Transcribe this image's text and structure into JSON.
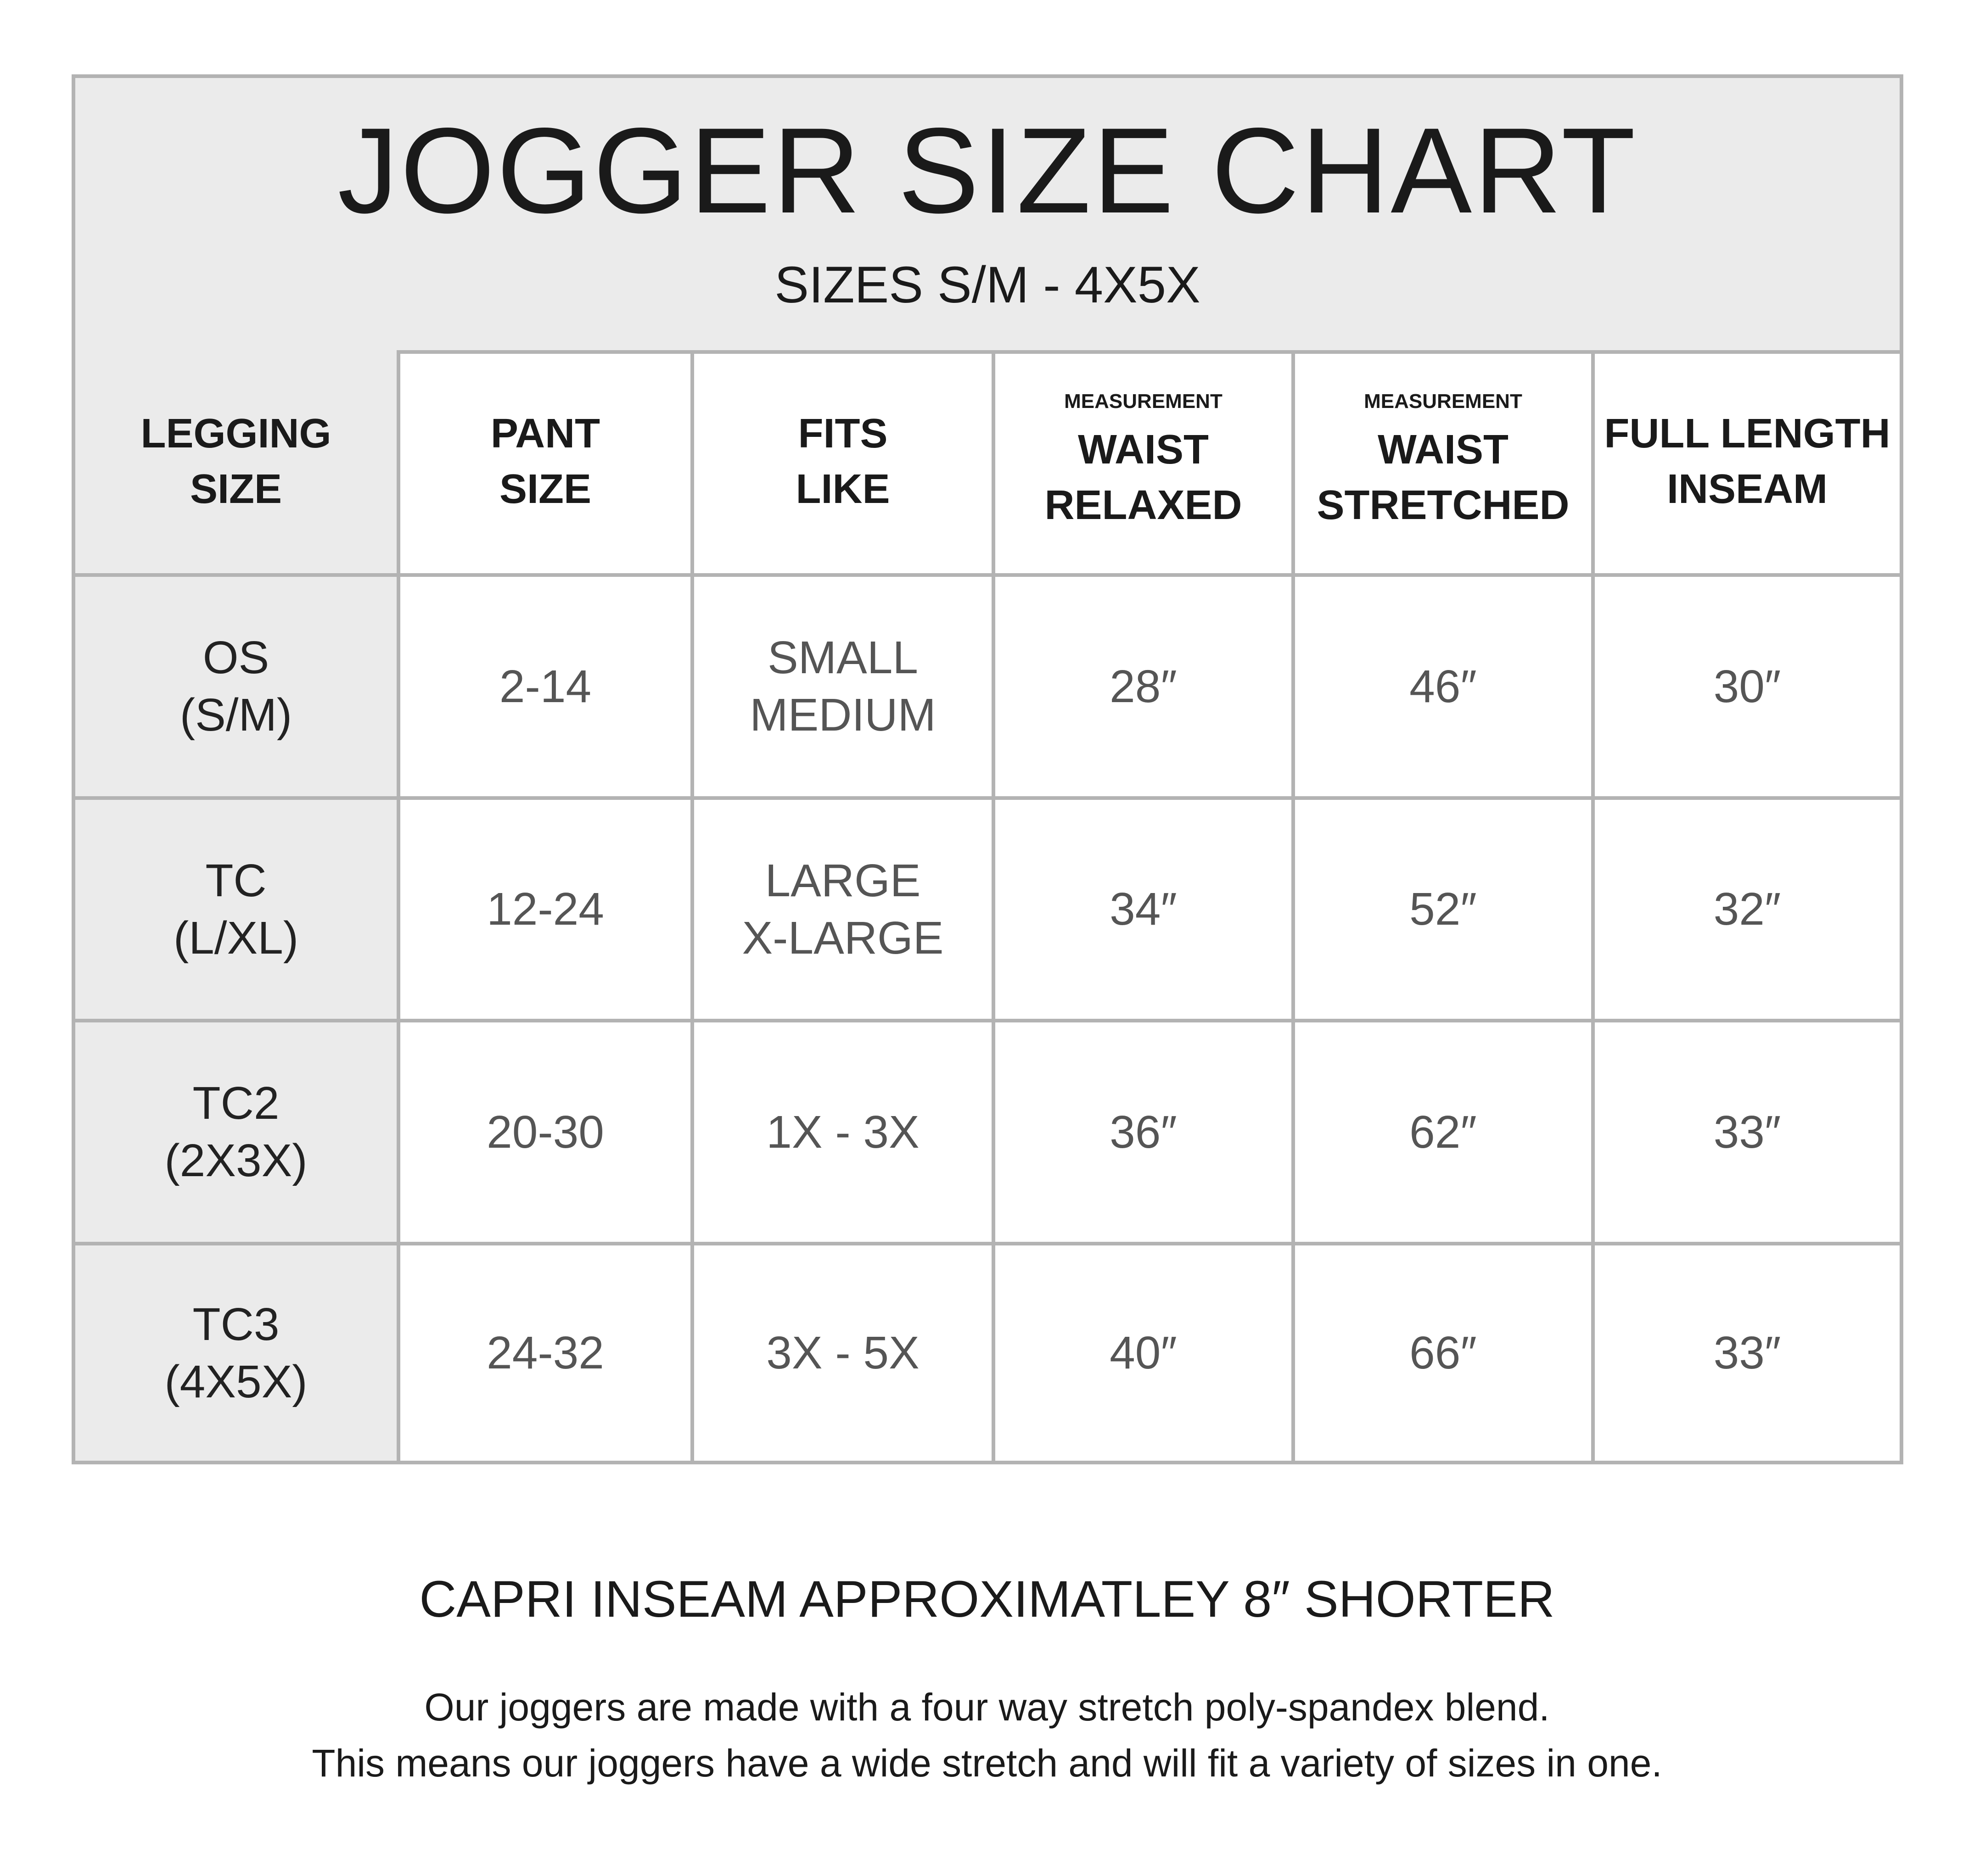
{
  "title": "JOGGER SIZE CHART",
  "subtitle": "SIZES S/M - 4X5X",
  "table": {
    "headers": [
      {
        "small": "",
        "lines": [
          "LEGGING",
          "SIZE"
        ]
      },
      {
        "small": "",
        "lines": [
          "PANT",
          "SIZE"
        ]
      },
      {
        "small": "",
        "lines": [
          "FITS",
          "LIKE"
        ]
      },
      {
        "small": "MEASUREMENT",
        "lines": [
          "WAIST",
          "RELAXED"
        ]
      },
      {
        "small": "MEASUREMENT",
        "lines": [
          "WAIST",
          "STRETCHED"
        ]
      },
      {
        "small": "",
        "lines": [
          "FULL LENGTH",
          "INSEAM"
        ]
      }
    ],
    "rows": [
      [
        [
          "OS",
          "(S/M)"
        ],
        [
          "2-14"
        ],
        [
          "SMALL",
          "MEDIUM"
        ],
        [
          "28″"
        ],
        [
          "46″"
        ],
        [
          "30″"
        ]
      ],
      [
        [
          "TC",
          "(L/XL)"
        ],
        [
          "12-24"
        ],
        [
          "LARGE",
          "X-LARGE"
        ],
        [
          "34″"
        ],
        [
          "52″"
        ],
        [
          "32″"
        ]
      ],
      [
        [
          "TC2",
          "(2X3X)"
        ],
        [
          "20-30"
        ],
        [
          "1X - 3X"
        ],
        [
          "36″"
        ],
        [
          "62″"
        ],
        [
          "33″"
        ]
      ],
      [
        [
          "TC3",
          "(4X5X)"
        ],
        [
          "24-32"
        ],
        [
          "3X - 5X"
        ],
        [
          "40″"
        ],
        [
          "66″"
        ],
        [
          "33″"
        ]
      ]
    ]
  },
  "footer": {
    "capri_note": "CAPRI INSEAM APPROXIMATLEY 8″ SHORTER",
    "blurb_lines": [
      "Our joggers are made with a four way stretch poly-spandex blend.",
      "This means our joggers have a wide stretch and will fit a variety of sizes in one."
    ]
  },
  "colors": {
    "border": "#b3b3b3",
    "shade": "#ebebeb",
    "value_text": "#555555"
  }
}
